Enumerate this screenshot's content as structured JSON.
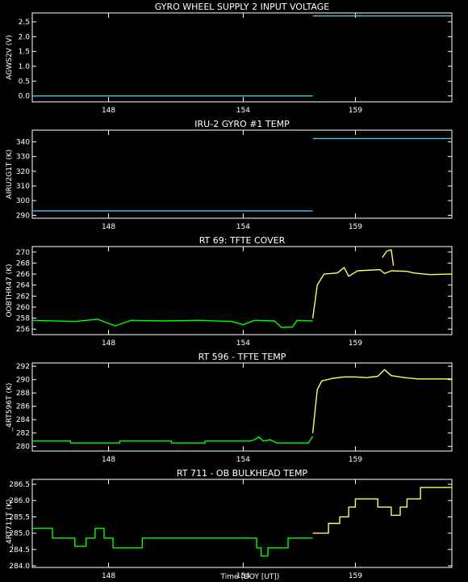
{
  "colors": {
    "background": "#000000",
    "frame": "#ffffff",
    "cyan_series": "#40c8f0",
    "green_series": "#00ff00",
    "yellow_series": "#ffff60"
  },
  "xlabel": "Time (DOY [UT])",
  "chart_data": [
    {
      "type": "line",
      "title": "GYRO WHEEL SUPPLY 2 INPUT VOLTAGE",
      "ylabel": "AGWS2V (V)",
      "xlim": [
        144.6,
        163.3
      ],
      "ylim": [
        -0.2,
        2.8
      ],
      "xticks": [
        148,
        154,
        159
      ],
      "yticks": [
        0.0,
        0.5,
        1.0,
        1.5,
        2.0,
        2.5
      ],
      "ytick_labels": [
        "0.0",
        "0.5",
        "1.0",
        "1.5",
        "2.0",
        "2.5"
      ],
      "series": [
        {
          "color": "cyan",
          "points": [
            [
              144.6,
              0.0
            ],
            [
              157.1,
              0.0
            ]
          ]
        },
        {
          "color": "cyan",
          "points": [
            [
              157.1,
              2.7
            ],
            [
              163.3,
              2.7
            ]
          ]
        }
      ]
    },
    {
      "type": "line",
      "title": "IRU-2 GYRO #1 TEMP",
      "ylabel": "AIRU2G1T (K)",
      "xlim": [
        144.6,
        163.3
      ],
      "ylim": [
        288,
        348
      ],
      "xticks": [
        148,
        154,
        159
      ],
      "yticks": [
        290,
        300,
        310,
        320,
        330,
        340
      ],
      "ytick_labels": [
        "290",
        "300",
        "310",
        "320",
        "330",
        "340"
      ],
      "series": [
        {
          "color": "cyan",
          "points": [
            [
              144.6,
              293
            ],
            [
              157.1,
              293
            ]
          ]
        },
        {
          "color": "cyan",
          "points": [
            [
              157.1,
              342.3
            ],
            [
              163.3,
              342.3
            ]
          ]
        }
      ]
    },
    {
      "type": "line",
      "title": "RT 69: TFTE COVER",
      "ylabel": "OOBTHR47 (K)",
      "xlim": [
        144.6,
        163.3
      ],
      "ylim": [
        255,
        271
      ],
      "xticks": [
        148,
        154,
        159
      ],
      "yticks": [
        256,
        258,
        260,
        262,
        264,
        266,
        268,
        270
      ],
      "ytick_labels": [
        "256",
        "258",
        "260",
        "262",
        "264",
        "266",
        "268",
        "270"
      ],
      "series": [
        {
          "color": "green",
          "points": [
            [
              144.6,
              257.6
            ],
            [
              146.5,
              257.4
            ],
            [
              147.5,
              257.8
            ],
            [
              148.3,
              256.6
            ],
            [
              149.0,
              257.6
            ],
            [
              150.5,
              257.5
            ],
            [
              152.0,
              257.6
            ],
            [
              153.5,
              257.4
            ],
            [
              154.0,
              256.8
            ],
            [
              154.5,
              257.6
            ],
            [
              155.4,
              257.5
            ],
            [
              155.7,
              256.3
            ],
            [
              156.2,
              256.4
            ],
            [
              156.4,
              257.6
            ],
            [
              157.1,
              257.5
            ]
          ]
        },
        {
          "color": "yellow",
          "points": [
            [
              157.1,
              258.0
            ],
            [
              157.3,
              264.0
            ],
            [
              157.6,
              266.0
            ],
            [
              158.2,
              266.2
            ],
            [
              158.5,
              267.2
            ],
            [
              158.7,
              265.6
            ],
            [
              159.1,
              266.6
            ],
            [
              160.1,
              266.8
            ],
            [
              160.3,
              266.1
            ],
            [
              160.6,
              266.6
            ],
            [
              161.3,
              266.5
            ],
            [
              161.6,
              266.2
            ],
            [
              162.3,
              265.9
            ],
            [
              163.3,
              266.0
            ]
          ]
        },
        {
          "color": "yellow",
          "points": [
            [
              160.2,
              269.0
            ],
            [
              160.4,
              270.2
            ],
            [
              160.6,
              270.4
            ],
            [
              160.7,
              267.5
            ]
          ]
        }
      ]
    },
    {
      "type": "line",
      "title": "RT 596 - TFTE TEMP",
      "ylabel": "_4RT596T (K)",
      "xlim": [
        144.6,
        163.3
      ],
      "ylim": [
        279.3,
        292.5
      ],
      "xticks": [
        148,
        154,
        159
      ],
      "yticks": [
        280,
        282,
        284,
        286,
        288,
        290,
        292
      ],
      "ytick_labels": [
        "280",
        "282",
        "284",
        "286",
        "288",
        "290",
        "292"
      ],
      "series": [
        {
          "color": "green",
          "points": [
            [
              144.6,
              280.8
            ],
            [
              146.3,
              280.8
            ],
            [
              146.3,
              280.5
            ],
            [
              148.5,
              280.5
            ],
            [
              148.5,
              280.8
            ],
            [
              150.8,
              280.8
            ],
            [
              150.8,
              280.5
            ],
            [
              152.3,
              280.5
            ],
            [
              152.3,
              280.8
            ],
            [
              154.3,
              280.8
            ],
            [
              154.5,
              281.0
            ],
            [
              154.7,
              281.4
            ],
            [
              154.9,
              280.8
            ],
            [
              155.2,
              281.0
            ],
            [
              155.5,
              280.5
            ],
            [
              156.9,
              280.5
            ],
            [
              157.0,
              281.0
            ],
            [
              157.1,
              281.5
            ]
          ]
        },
        {
          "color": "yellow",
          "points": [
            [
              157.1,
              282.0
            ],
            [
              157.3,
              288.5
            ],
            [
              157.5,
              289.8
            ],
            [
              158.0,
              290.2
            ],
            [
              158.5,
              290.4
            ],
            [
              159.0,
              290.4
            ],
            [
              159.5,
              290.3
            ],
            [
              160.0,
              290.5
            ],
            [
              160.3,
              291.5
            ],
            [
              160.6,
              290.6
            ],
            [
              161.2,
              290.3
            ],
            [
              161.8,
              290.1
            ],
            [
              163.3,
              290.1
            ]
          ]
        }
      ]
    },
    {
      "type": "line",
      "title": "RT 711 - OB BULKHEAD TEMP",
      "ylabel": "_4RT711T (K)",
      "xlim": [
        144.6,
        163.3
      ],
      "ylim": [
        283.95,
        286.65
      ],
      "xticks": [
        148,
        154,
        159
      ],
      "yticks": [
        284.0,
        284.5,
        285.0,
        285.5,
        286.0,
        286.5
      ],
      "ytick_labels": [
        "284.0",
        "284.5",
        "285.0",
        "285.5",
        "286.0",
        "286.5"
      ],
      "series": [
        {
          "color": "green",
          "points": [
            [
              144.6,
              285.15
            ],
            [
              145.5,
              285.15
            ],
            [
              145.5,
              284.85
            ],
            [
              146.5,
              284.85
            ],
            [
              146.5,
              284.6
            ],
            [
              147.0,
              284.6
            ],
            [
              147.0,
              284.85
            ],
            [
              147.4,
              284.85
            ],
            [
              147.4,
              285.15
            ],
            [
              147.8,
              285.15
            ],
            [
              147.8,
              284.85
            ],
            [
              148.2,
              284.85
            ],
            [
              148.2,
              284.55
            ],
            [
              149.5,
              284.55
            ],
            [
              149.5,
              284.85
            ],
            [
              154.6,
              284.85
            ],
            [
              154.6,
              284.55
            ],
            [
              154.8,
              284.55
            ],
            [
              154.8,
              284.3
            ],
            [
              155.1,
              284.3
            ],
            [
              155.1,
              284.55
            ],
            [
              156.0,
              284.55
            ],
            [
              156.0,
              284.85
            ],
            [
              157.1,
              284.85
            ]
          ]
        },
        {
          "color": "yellow",
          "points": [
            [
              157.1,
              285.0
            ],
            [
              157.8,
              285.0
            ],
            [
              157.8,
              285.3
            ],
            [
              158.3,
              285.3
            ],
            [
              158.3,
              285.5
            ],
            [
              158.7,
              285.5
            ],
            [
              158.7,
              285.8
            ],
            [
              159.0,
              285.8
            ],
            [
              159.0,
              286.05
            ],
            [
              160.0,
              286.05
            ],
            [
              160.0,
              285.8
            ],
            [
              160.6,
              285.8
            ],
            [
              160.6,
              285.55
            ],
            [
              161.0,
              285.55
            ],
            [
              161.0,
              285.8
            ],
            [
              161.3,
              285.8
            ],
            [
              161.3,
              286.05
            ],
            [
              161.9,
              286.05
            ],
            [
              161.9,
              286.4
            ],
            [
              163.3,
              286.4
            ]
          ]
        }
      ]
    }
  ]
}
